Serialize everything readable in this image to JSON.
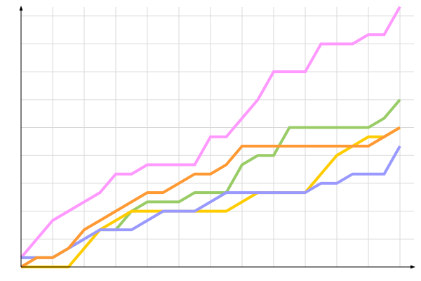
{
  "chart_data": {
    "type": "line",
    "title": "",
    "xlabel": "",
    "ylabel": "",
    "x": [
      0,
      1,
      2,
      3,
      4,
      5,
      6,
      7,
      8,
      9,
      10,
      11,
      12,
      13,
      14,
      15,
      16,
      17,
      18,
      19,
      20,
      21,
      22,
      23,
      24
    ],
    "xlim": [
      0,
      24
    ],
    "ylim": [
      0,
      28
    ],
    "x_grid_step": 2,
    "y_grid_step": 3,
    "grid": true,
    "tick_labels_shown": false,
    "series": [
      {
        "color": "#ff99ff",
        "values": [
          1,
          3,
          5,
          6,
          7,
          8,
          10,
          10,
          11,
          11,
          11,
          11,
          14,
          14,
          16,
          18,
          21,
          21,
          21,
          24,
          24,
          24,
          25,
          25,
          28
        ]
      },
      {
        "color": "#99cc66",
        "values": [
          1,
          1,
          1,
          2,
          3,
          4,
          4,
          6,
          7,
          7,
          7,
          8,
          8,
          8,
          11,
          12,
          12,
          15,
          15,
          15,
          15,
          15,
          15,
          16,
          18
        ]
      },
      {
        "color": "#ffcc00",
        "values": [
          0,
          0,
          0,
          0,
          2,
          4,
          5,
          6,
          6,
          6,
          6,
          6,
          6,
          6,
          7,
          8,
          8,
          8,
          8,
          10,
          12,
          13,
          14,
          14,
          15
        ]
      },
      {
        "color": "#9999ff",
        "values": [
          1,
          1,
          1,
          2,
          3,
          4,
          4,
          4,
          5,
          6,
          6,
          6,
          7,
          8,
          8,
          8,
          8,
          8,
          8,
          9,
          9,
          10,
          10,
          10,
          13
        ]
      },
      {
        "color": "#ff9933",
        "values": [
          0,
          1,
          1,
          2,
          4,
          5,
          6,
          7,
          8,
          8,
          9,
          10,
          10,
          11,
          13,
          13,
          13,
          13,
          13,
          13,
          13,
          13,
          13,
          14,
          15
        ]
      }
    ]
  }
}
